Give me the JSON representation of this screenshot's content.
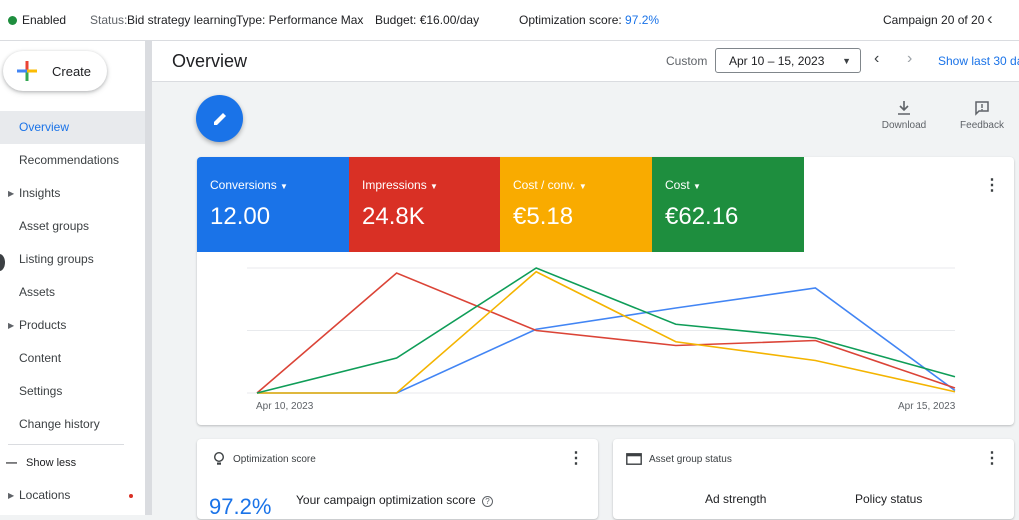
{
  "status_bar": {
    "enabled": "Enabled",
    "status_label": "Status:",
    "status_value": "Bid strategy learning",
    "type": "Type: Performance Max",
    "budget": "Budget: €16.00/day",
    "opt_label": "Optimization score:",
    "opt_value": "97.2%",
    "campaign_counter": "Campaign 20 of 20"
  },
  "sidebar": {
    "create_label": "Create",
    "items": [
      {
        "label": "Overview"
      },
      {
        "label": "Recommendations"
      },
      {
        "label": "Insights"
      },
      {
        "label": "Asset groups"
      },
      {
        "label": "Listing groups"
      },
      {
        "label": "Assets"
      },
      {
        "label": "Products"
      },
      {
        "label": "Content"
      },
      {
        "label": "Settings"
      },
      {
        "label": "Change history"
      }
    ],
    "show_less": "Show less",
    "locations": "Locations"
  },
  "header": {
    "title": "Overview",
    "custom_label": "Custom",
    "date_range": "Apr 10 – 15, 2023",
    "show_last": "Show last 30 da"
  },
  "tools": {
    "download": "Download",
    "feedback": "Feedback"
  },
  "metrics": [
    {
      "label": "Conversions",
      "value": "12.00",
      "color": "#1a73e8"
    },
    {
      "label": "Impressions",
      "value": "24.8K",
      "color": "#d93025"
    },
    {
      "label": "Cost / conv.",
      "value": "€5.18",
      "color": "#f9ab00"
    },
    {
      "label": "Cost",
      "value": "€62.16",
      "color": "#1e8e3e"
    }
  ],
  "chart_data": {
    "type": "line",
    "x": [
      "Apr 10, 2023",
      "Apr 11, 2023",
      "Apr 12, 2023",
      "Apr 13, 2023",
      "Apr 14, 2023",
      "Apr 15, 2023"
    ],
    "x_tick_labels": [
      "Apr 10, 2023",
      "Apr 15, 2023"
    ],
    "grid": true,
    "series": [
      {
        "name": "Conversions",
        "color": "#4285f4",
        "values": [
          0,
          0,
          0.51,
          0.68,
          0.84,
          0.02
        ]
      },
      {
        "name": "Impressions",
        "color": "#db4437",
        "values": [
          0,
          0.96,
          0.5,
          0.38,
          0.42,
          0.04
        ]
      },
      {
        "name": "Cost / conv.",
        "color": "#f4b400",
        "values": [
          0,
          0,
          0.97,
          0.41,
          0.26,
          0.01
        ]
      },
      {
        "name": "Cost",
        "color": "#0f9d58",
        "values": [
          0,
          0.28,
          1.0,
          0.55,
          0.44,
          0.13
        ]
      }
    ],
    "ylim": [
      0,
      1
    ]
  },
  "opt_card": {
    "title": "Optimization score",
    "score": "97.2%",
    "desc": "Your campaign optimization score"
  },
  "asset_card": {
    "title": "Asset group status",
    "col1": "Ad strength",
    "col2": "Policy status"
  }
}
